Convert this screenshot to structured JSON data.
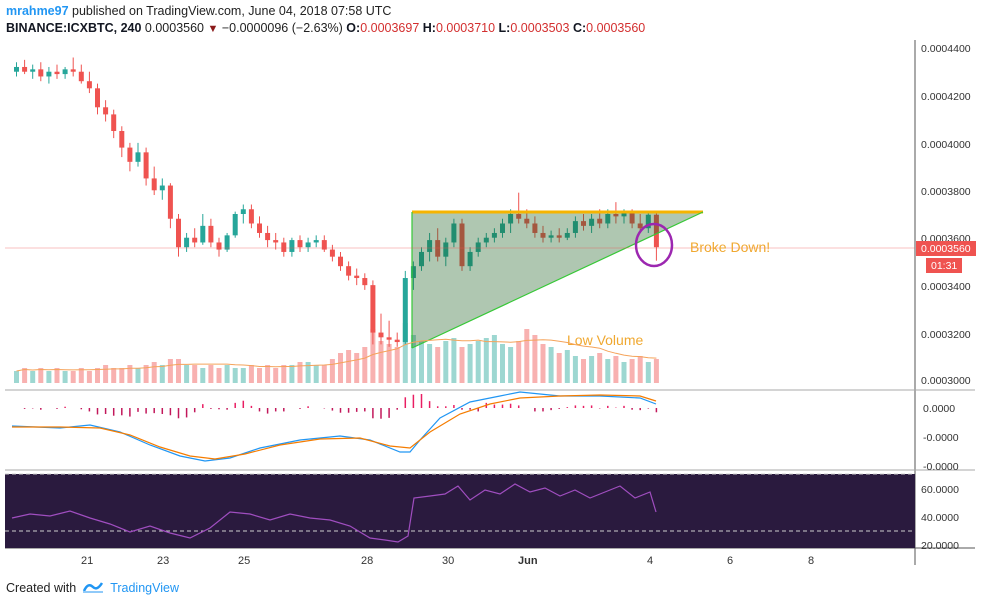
{
  "header": {
    "user": "mrahme97",
    "published": " published on TradingView.com, June 04, 2018 07:58 UTC",
    "symbol": "BINANCE:ICXBTC, 240",
    "last": "0.0003560",
    "change": "−0.0000096 (−2.63%)",
    "o_label": "O:",
    "o": "0.0003697",
    "h_label": "H:",
    "h": "0.0003710",
    "l_label": "L:",
    "l": "0.0003503",
    "c_label": "C:",
    "c": "0.0003560"
  },
  "price_axis": {
    "ticks": [
      "0.0004400",
      "0.0004200",
      "0.0004000",
      "0.0003800",
      "0.0003600",
      "0.0003400",
      "0.0003200",
      "0.0003000"
    ],
    "current_label": "0.0003560",
    "countdown": "01:31"
  },
  "macd_axis": {
    "ticks": [
      "0.0000",
      "-0.0000",
      "-0.0000"
    ]
  },
  "rsi_axis": {
    "ticks": [
      "60.0000",
      "40.0000",
      "20.0000"
    ]
  },
  "time_axis": {
    "labels": [
      "21",
      "23",
      "25",
      "28",
      "30",
      "Jun",
      "4",
      "6",
      "8"
    ]
  },
  "annotations": {
    "broke_down": "Broke Down!",
    "low_volume": "Low Volume"
  },
  "colors": {
    "up": "#26a69a",
    "down": "#ef5350",
    "triangle_top": "#f5b400",
    "triangle_side": "#37c837",
    "annotation_text": "#f0a830",
    "macd": "#2196f3",
    "signal": "#f57c00",
    "rsi": "#9c27b0",
    "circle": "#9c27b0"
  },
  "footer": {
    "created_with": "Created with",
    "brand": "TradingView"
  },
  "chart_data": {
    "type": "candlestick",
    "symbol": "BINANCE:ICXBTC",
    "interval": "240",
    "ohlc": [
      [
        0.00043,
        0.000434,
        0.000428,
        0.000432
      ],
      [
        0.000432,
        0.000435,
        0.000429,
        0.00043
      ],
      [
        0.00043,
        0.000433,
        0.000427,
        0.000431
      ],
      [
        0.000431,
        0.000434,
        0.000426,
        0.000428
      ],
      [
        0.000428,
        0.000432,
        0.000425,
        0.00043
      ],
      [
        0.00043,
        0.000433,
        0.000427,
        0.000429
      ],
      [
        0.000429,
        0.000432,
        0.000427,
        0.000431
      ],
      [
        0.000431,
        0.000436,
        0.000428,
        0.00043
      ],
      [
        0.00043,
        0.000433,
        0.000425,
        0.000426
      ],
      [
        0.000426,
        0.00043,
        0.000421,
        0.000423
      ],
      [
        0.000423,
        0.000425,
        0.000412,
        0.000415
      ],
      [
        0.000415,
        0.000418,
        0.000409,
        0.000412
      ],
      [
        0.000412,
        0.000414,
        0.000402,
        0.000405
      ],
      [
        0.000405,
        0.000407,
        0.000394,
        0.000398
      ],
      [
        0.000398,
        0.0004,
        0.000388,
        0.000392
      ],
      [
        0.000392,
        0.0004,
        0.00039,
        0.000396
      ],
      [
        0.000396,
        0.000398,
        0.000382,
        0.000385
      ],
      [
        0.000385,
        0.00039,
        0.000378,
        0.00038
      ],
      [
        0.00038,
        0.000385,
        0.000376,
        0.000382
      ],
      [
        0.000382,
        0.000383,
        0.000364,
        0.000368
      ],
      [
        0.000368,
        0.00037,
        0.000352,
        0.000356
      ],
      [
        0.000356,
        0.000362,
        0.000354,
        0.00036
      ],
      [
        0.00036,
        0.000364,
        0.000356,
        0.000358
      ],
      [
        0.000358,
        0.00037,
        0.000357,
        0.000365
      ],
      [
        0.000365,
        0.000368,
        0.000356,
        0.000358
      ],
      [
        0.000358,
        0.00036,
        0.000352,
        0.000355
      ],
      [
        0.000355,
        0.000362,
        0.000354,
        0.000361
      ],
      [
        0.000361,
        0.000371,
        0.00036,
        0.00037
      ],
      [
        0.00037,
        0.000374,
        0.000366,
        0.000372
      ],
      [
        0.000372,
        0.000374,
        0.000364,
        0.000366
      ],
      [
        0.000366,
        0.000369,
        0.00036,
        0.000362
      ],
      [
        0.000362,
        0.000365,
        0.000356,
        0.000359
      ],
      [
        0.000359,
        0.000362,
        0.000355,
        0.000358
      ],
      [
        0.000358,
        0.00036,
        0.000352,
        0.000354
      ],
      [
        0.000354,
        0.00036,
        0.000352,
        0.000359
      ],
      [
        0.000359,
        0.000361,
        0.000354,
        0.000356
      ],
      [
        0.000356,
        0.00036,
        0.000354,
        0.000358
      ],
      [
        0.000358,
        0.000361,
        0.000356,
        0.000359
      ],
      [
        0.000359,
        0.000361,
        0.000354,
        0.000355
      ],
      [
        0.000355,
        0.000357,
        0.00035,
        0.000352
      ],
      [
        0.000352,
        0.000354,
        0.000346,
        0.000348
      ],
      [
        0.000348,
        0.00035,
        0.000342,
        0.000344
      ],
      [
        0.000344,
        0.000347,
        0.00034,
        0.000343
      ],
      [
        0.000343,
        0.000345,
        0.000338,
        0.00034
      ],
      [
        0.00034,
        0.000342,
        0.000315,
        0.00032
      ],
      [
        0.00032,
        0.000328,
        0.000315,
        0.000318
      ],
      [
        0.000318,
        0.000325,
        0.000314,
        0.000317
      ],
      [
        0.000317,
        0.00032,
        0.000314,
        0.000316
      ],
      [
        0.000316,
        0.000346,
        0.000315,
        0.000343
      ],
      [
        0.000343,
        0.00035,
        0.000338,
        0.000348
      ],
      [
        0.000348,
        0.000356,
        0.000346,
        0.000354
      ],
      [
        0.000354,
        0.000362,
        0.00035,
        0.000359
      ],
      [
        0.000359,
        0.000364,
        0.00035,
        0.000352
      ],
      [
        0.000352,
        0.00036,
        0.000348,
        0.000358
      ],
      [
        0.000358,
        0.000368,
        0.000356,
        0.000366
      ],
      [
        0.000366,
        0.000368,
        0.000346,
        0.000348
      ],
      [
        0.000348,
        0.000356,
        0.000346,
        0.000354
      ],
      [
        0.000354,
        0.00036,
        0.000352,
        0.000358
      ],
      [
        0.000358,
        0.000362,
        0.000356,
        0.00036
      ],
      [
        0.00036,
        0.000364,
        0.000358,
        0.000362
      ],
      [
        0.000362,
        0.000368,
        0.00036,
        0.000366
      ],
      [
        0.000366,
        0.000372,
        0.000362,
        0.00037
      ],
      [
        0.00037,
        0.000379,
        0.000366,
        0.000368
      ],
      [
        0.000368,
        0.000372,
        0.000364,
        0.000366
      ],
      [
        0.000366,
        0.000369,
        0.00036,
        0.000362
      ],
      [
        0.000362,
        0.000365,
        0.000358,
        0.00036
      ],
      [
        0.00036,
        0.000363,
        0.000358,
        0.000361
      ],
      [
        0.000361,
        0.000364,
        0.000358,
        0.00036
      ],
      [
        0.00036,
        0.000364,
        0.000359,
        0.000362
      ],
      [
        0.000362,
        0.000369,
        0.00036,
        0.000367
      ],
      [
        0.000367,
        0.00037,
        0.000363,
        0.000365
      ],
      [
        0.000365,
        0.00037,
        0.000362,
        0.000368
      ],
      [
        0.000368,
        0.000372,
        0.000364,
        0.000366
      ],
      [
        0.000366,
        0.000372,
        0.000364,
        0.00037
      ],
      [
        0.00037,
        0.000375,
        0.000366,
        0.000369
      ],
      [
        0.000369,
        0.000372,
        0.000366,
        0.000371
      ],
      [
        0.000371,
        0.000372,
        0.000364,
        0.000366
      ],
      [
        0.000366,
        0.00037,
        0.000362,
        0.000364
      ],
      [
        0.000364,
        0.000371,
        0.000362,
        0.0003697
      ],
      [
        0.0003697,
        0.000371,
        0.0003503,
        0.000356
      ]
    ],
    "volume": [
      4,
      5,
      4,
      5,
      4,
      5,
      4,
      4,
      5,
      4,
      5,
      6,
      5,
      5,
      6,
      5,
      6,
      7,
      6,
      8,
      8,
      6,
      6,
      5,
      6,
      5,
      6,
      5,
      5,
      6,
      5,
      6,
      5,
      6,
      6,
      7,
      7,
      6,
      6,
      8,
      10,
      11,
      10,
      12,
      18,
      14,
      13,
      12,
      20,
      16,
      14,
      13,
      12,
      14,
      15,
      12,
      13,
      14,
      15,
      16,
      13,
      12,
      14,
      18,
      16,
      13,
      12,
      10,
      11,
      9,
      8,
      9,
      10,
      8,
      9,
      7,
      8,
      9,
      7,
      8
    ],
    "y_axis": {
      "min": 0.0003,
      "max": 0.00044
    },
    "x_labels": [
      "21",
      "23",
      "25",
      "28",
      "30",
      "Jun",
      "4",
      "6",
      "8"
    ],
    "last_price": 0.000356,
    "indicators": [
      "Volume",
      "MACD",
      "RSI"
    ]
  }
}
